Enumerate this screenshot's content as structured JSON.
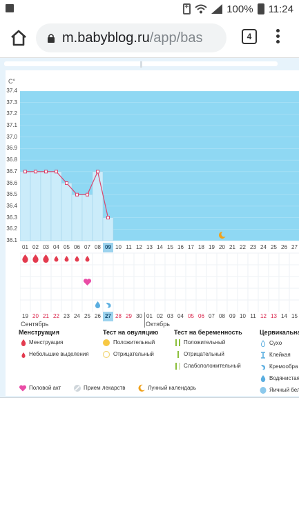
{
  "status_bar": {
    "battery_percent": "100%",
    "time": "11:24"
  },
  "browser": {
    "url_main": "m.babyblog.ru",
    "url_path": "/app/bas",
    "tab_count": "4"
  },
  "chart": {
    "unit": "C°",
    "y_ticks": [
      "37.4",
      "37.3",
      "37.2",
      "37.1",
      "37.0",
      "36.9",
      "36.8",
      "36.7",
      "36.6",
      "36.5",
      "36.4",
      "36.3",
      "36.2",
      "36.1"
    ],
    "top_dates": [
      "01",
      "02",
      "03",
      "04",
      "05",
      "06",
      "07",
      "08",
      "09",
      "10",
      "11",
      "12",
      "13",
      "14",
      "15",
      "16",
      "17",
      "18",
      "19",
      "20",
      "21",
      "22",
      "23",
      "24",
      "25",
      "26",
      "27"
    ],
    "bottom_dates": [
      "19",
      "20",
      "21",
      "22",
      "23",
      "24",
      "25",
      "26",
      "27",
      "28",
      "29",
      "30",
      "01",
      "02",
      "03",
      "04",
      "05",
      "06",
      "07",
      "08",
      "09",
      "10",
      "11",
      "12",
      "13",
      "14",
      "15"
    ],
    "bottom_red_indices": [
      1,
      2,
      3,
      9,
      10,
      16,
      17,
      23,
      24
    ],
    "today_index": 8,
    "month_left": "Сентябрь",
    "month_right": "Октябрь"
  },
  "chart_data": {
    "type": "line",
    "ylabel": "C°",
    "ylim": [
      36.1,
      37.4
    ],
    "x": [
      "01",
      "02",
      "03",
      "04",
      "05",
      "06",
      "07",
      "08",
      "09"
    ],
    "values": [
      36.7,
      36.7,
      36.7,
      36.7,
      36.6,
      36.5,
      36.5,
      36.7,
      36.3
    ],
    "menstruation": [
      "big",
      "big",
      "big",
      "small",
      "small",
      "small",
      "small"
    ],
    "intercourse_day_index": 6,
    "cervical_fluid_day_indices": [
      7,
      8
    ],
    "moon_day_index": 19
  },
  "legend": {
    "col1": {
      "title": "Менструация",
      "items": [
        "Менструация",
        "Небольшие выделения"
      ]
    },
    "col2": {
      "title": "Тест на овуляцию",
      "items": [
        "Положительный",
        "Отрицательный"
      ]
    },
    "col3": {
      "title": "Тест на беременность",
      "items": [
        "Положительный",
        "Отрицательный",
        "Слабоположительный"
      ]
    },
    "col4": {
      "title": "Цервикальная",
      "items": [
        "Сухо",
        "Клейкая",
        "Кремообра",
        "Водянистая",
        "Яичный бел"
      ]
    },
    "bottom": [
      "Половой акт",
      "Прием лекарств",
      "Лунный календарь"
    ]
  },
  "colors": {
    "chart_bg": "#8fd8f3",
    "bar_fill": "#cbecfa",
    "line": "#d9476e",
    "drop_red": "#e33b4f",
    "heart": "#e94ca6",
    "drop_blue": "#5aaee0",
    "moon": "#f0a21c",
    "yellow": "#f7c843",
    "green": "#8bbf3a"
  }
}
